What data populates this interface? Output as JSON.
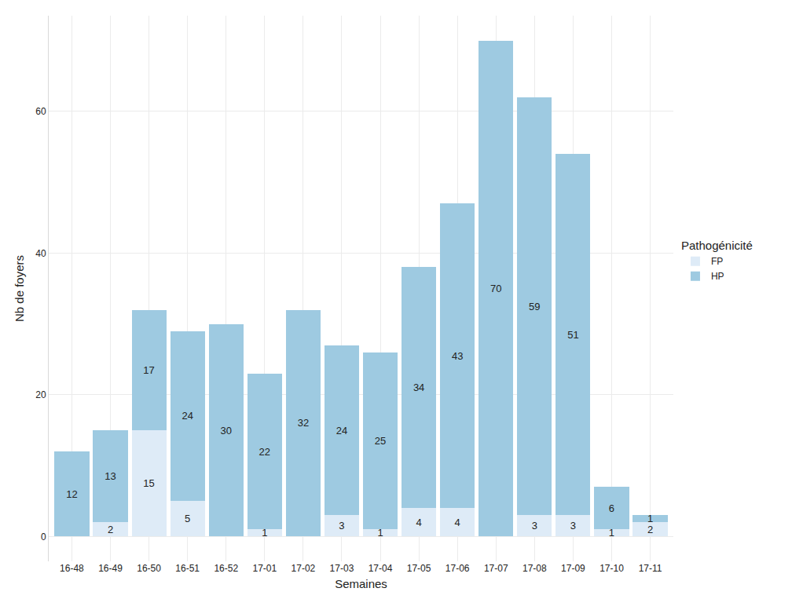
{
  "chart_data": {
    "type": "bar",
    "stacked": true,
    "x_label": "Semaines",
    "y_label": "Nb de foyers",
    "legend_title": "Pathogénicité",
    "legend": "right",
    "grid": true,
    "data_labels": true,
    "categories": [
      "16-48",
      "16-49",
      "16-50",
      "16-51",
      "16-52",
      "17-01",
      "17-02",
      "17-03",
      "17-04",
      "17-05",
      "17-06",
      "17-07",
      "17-08",
      "17-09",
      "17-10",
      "17-11"
    ],
    "series": [
      {
        "name": "FP",
        "color": "#deebf7",
        "values": [
          null,
          2,
          15,
          5,
          null,
          1,
          null,
          3,
          1,
          4,
          4,
          null,
          3,
          3,
          1,
          2
        ]
      },
      {
        "name": "HP",
        "color": "#9ecae1",
        "values": [
          12,
          13,
          17,
          24,
          30,
          22,
          32,
          24,
          25,
          34,
          43,
          70,
          59,
          51,
          6,
          1
        ]
      }
    ],
    "ylim": [
      -3.5,
      73.5
    ],
    "yticks": [
      0,
      20,
      40,
      60
    ]
  }
}
